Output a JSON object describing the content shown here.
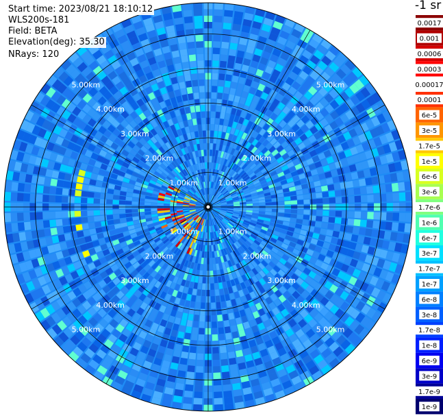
{
  "header": {
    "start_time": "Start time: 2023/08/21 18:10:12",
    "instrument": "WLS200s-181",
    "field": "Field: BETA",
    "elevation": "Elevation(deg): 35.30",
    "nrays": "NRays: 120"
  },
  "colorbar": {
    "title": "-1 sr",
    "labels": [
      "0.0017",
      "0.001",
      "0.0006",
      "0.0003",
      "0.00017",
      "0.0001",
      "6e-5",
      "3e-5",
      "1.7e-5",
      "1e-5",
      "6e-6",
      "3e-6",
      "1.7e-6",
      "1e-6",
      "6e-7",
      "3e-7",
      "1.7e-7",
      "1e-7",
      "6e-8",
      "3e-8",
      "1.7e-8",
      "1e-8",
      "6e-9",
      "3e-9",
      "1.7e-9",
      "1e-9"
    ],
    "colors": [
      "#8b0000",
      "#b00000",
      "#d40000",
      "#ff0000",
      "#ffffff",
      "#ff3000",
      "#ff6400",
      "#ff9600",
      "#ffc800",
      "#ffff00",
      "#d8ff20",
      "#a8ff50",
      "#80ff80",
      "#50ffb0",
      "#20ffe0",
      "#00e0ff",
      "#00c0ff",
      "#00a0ff",
      "#0080ff",
      "#0060ff",
      "#0040ff",
      "#0020ff",
      "#0000f0",
      "#0000c8",
      "#000096",
      "#00006e"
    ]
  },
  "chart_data": {
    "type": "heatmap",
    "projection": "polar PPI (plan position indicator)",
    "field": "BETA",
    "nrays": 120,
    "elevation_deg": 35.3,
    "range_ring_labels": [
      "1.00km",
      "2.00km",
      "3.00km",
      "4.00km",
      "5.00km"
    ],
    "range_rings_km": [
      1,
      2,
      3,
      4,
      5
    ],
    "max_range_km": 5.9,
    "background_level": "3e-8",
    "high_return_regions": [
      {
        "description": "aerosol/cloud cluster",
        "range_km": [
          0.4,
          1.5
        ],
        "azimuth_deg": [
          195,
          300
        ],
        "level": "3e-5 to 1e-4"
      },
      {
        "description": "weak arc",
        "range_km": [
          3.6,
          3.9
        ],
        "azimuth_deg": [
          245,
          290
        ],
        "level": "1e-6 to 1.7e-6"
      }
    ]
  }
}
